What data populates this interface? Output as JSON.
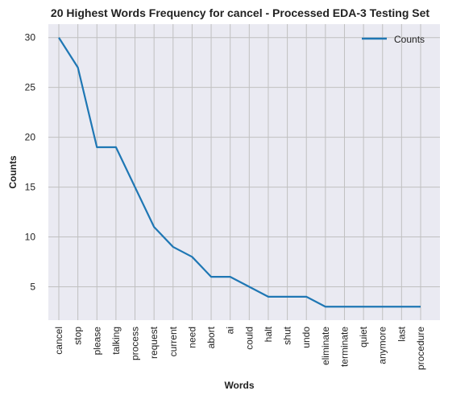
{
  "chart_data": {
    "type": "line",
    "title": "20 Highest Words Frequency for cancel - Processed EDA-3 Testing Set",
    "xlabel": "Words",
    "ylabel": "Counts",
    "categories": [
      "cancel",
      "stop",
      "please",
      "talking",
      "process",
      "request",
      "current",
      "need",
      "abort",
      "ai",
      "could",
      "halt",
      "shut",
      "undo",
      "eliminate",
      "terminate",
      "quiet",
      "anymore",
      "last",
      "procedure"
    ],
    "series": [
      {
        "name": "Counts",
        "values": [
          30,
          27,
          19,
          19,
          15,
          11,
          9,
          8,
          6,
          6,
          5,
          4,
          4,
          4,
          3,
          3,
          3,
          3,
          3,
          3
        ],
        "color": "#1f77b4"
      }
    ],
    "ylim": [
      1.65,
      31.35
    ],
    "yticks": [
      5,
      10,
      15,
      20,
      25,
      30
    ],
    "grid": true,
    "legend": "top-right",
    "background": "#eaeaf2",
    "grid_color": "#c0c0c0"
  }
}
